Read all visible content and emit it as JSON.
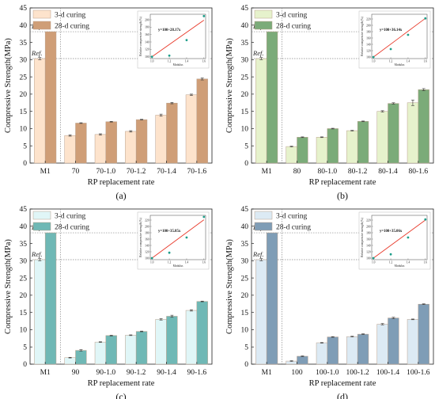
{
  "chart_data": [
    {
      "type": "bar",
      "panel_label": "(a)",
      "categories": [
        "M1",
        "70",
        "70-1.0",
        "70-1.2",
        "70-1.4",
        "70-1.6"
      ],
      "series": [
        {
          "name": "3-d curing",
          "values": [
            30.3,
            8.0,
            8.3,
            9.2,
            13.9,
            19.8
          ],
          "errors": [
            0.3,
            0.2,
            0.2,
            0.2,
            0.3,
            0.2
          ],
          "color": "#fde3cc"
        },
        {
          "name": "28-d curing",
          "values": [
            38.1,
            11.6,
            12.0,
            12.6,
            17.4,
            24.4
          ],
          "errors": [
            0.0,
            0.1,
            0.1,
            0.1,
            0.2,
            0.3
          ],
          "color": "#cf9e77"
        }
      ],
      "xlabel": "RP replacement rate",
      "ylabel": "Compressive Strength(MPa)",
      "ylim": [
        0,
        45
      ],
      "yticks": [
        0,
        5,
        10,
        15,
        20,
        25,
        30,
        35,
        40,
        45
      ],
      "ref_labels": [
        "Ref.",
        "Ref."
      ],
      "inset": {
        "equation": "y=100+28.17x",
        "xlabel": "Modulus",
        "ylabel": "Relative compressive strength (%)",
        "xticks": [
          "1.0",
          "1.2",
          "1.4",
          "1.6"
        ],
        "yticks": [
          "100",
          "120",
          "140",
          "160",
          "180",
          "200"
        ],
        "ylim": [
          95,
          215
        ],
        "points": [
          [
            1.0,
            100
          ],
          [
            1.2,
            103
          ],
          [
            1.4,
            145
          ],
          [
            1.6,
            210
          ]
        ],
        "fit": [
          [
            1.0,
            100
          ],
          [
            1.6,
            199
          ]
        ]
      }
    },
    {
      "type": "bar",
      "panel_label": "(b)",
      "categories": [
        "M1",
        "80",
        "80-1.0",
        "80-1.2",
        "80-1.4",
        "80-1.6"
      ],
      "series": [
        {
          "name": "3-d curing",
          "values": [
            30.3,
            4.8,
            7.5,
            9.4,
            15.0,
            17.5
          ],
          "errors": [
            0.3,
            0.1,
            0.1,
            0.1,
            0.2,
            0.8
          ],
          "color": "#e6f2cc"
        },
        {
          "name": "28-d curing",
          "values": [
            38.1,
            7.5,
            10.0,
            12.1,
            17.3,
            21.3
          ],
          "errors": [
            0.0,
            0.1,
            0.1,
            0.1,
            0.2,
            0.3
          ],
          "color": "#7bab79"
        }
      ],
      "xlabel": "RP replacement rate",
      "ylabel": "Compressive Strength(MPa)",
      "ylim": [
        0,
        45
      ],
      "yticks": [
        0,
        5,
        10,
        15,
        20,
        25,
        30,
        35,
        40,
        45
      ],
      "ref_labels": [
        "Ref.",
        "Ref."
      ],
      "inset": {
        "equation": "y=100+36.14x",
        "xlabel": "Modulus",
        "ylabel": "Relative compressive strength (%)",
        "xticks": [
          "1.0",
          "1.2",
          "1.4",
          "1.6"
        ],
        "yticks": [
          "100",
          "120",
          "140",
          "160",
          "180",
          "200",
          "220"
        ],
        "ylim": [
          95,
          235
        ],
        "points": [
          [
            1.0,
            100
          ],
          [
            1.2,
            125
          ],
          [
            1.4,
            170
          ],
          [
            1.6,
            222
          ]
        ],
        "fit": [
          [
            1.0,
            100
          ],
          [
            1.6,
            222
          ]
        ]
      }
    },
    {
      "type": "bar",
      "panel_label": "(c)",
      "categories": [
        "M1",
        "90",
        "90-1.0",
        "90-1.2",
        "90-1.4",
        "90-1.6"
      ],
      "series": [
        {
          "name": "3-d curing",
          "values": [
            30.3,
            1.9,
            6.4,
            8.4,
            13.0,
            15.6
          ],
          "errors": [
            0.3,
            0.1,
            0.1,
            0.1,
            0.2,
            0.2
          ],
          "color": "#e0f6f7"
        },
        {
          "name": "28-d curing",
          "values": [
            38.1,
            4.0,
            8.3,
            9.5,
            13.9,
            18.2
          ],
          "errors": [
            0.0,
            0.2,
            0.1,
            0.1,
            0.3,
            0.1
          ],
          "color": "#6fb8b5"
        }
      ],
      "xlabel": "RP replacement rate",
      "ylabel": "Compressive Strength(MPa)",
      "ylim": [
        0,
        45
      ],
      "yticks": [
        0,
        5,
        10,
        15,
        20,
        25,
        30,
        35,
        40,
        45
      ],
      "ref_labels": [
        "Ref.",
        "Ref."
      ],
      "inset": {
        "equation": "y=100+35.85x",
        "xlabel": "Modulus",
        "ylabel": "Relative compressive strength (%)",
        "xticks": [
          "1.0",
          "1.2",
          "1.4",
          "1.6"
        ],
        "yticks": [
          "100",
          "120",
          "140",
          "160",
          "180",
          "200",
          "220"
        ],
        "ylim": [
          95,
          235
        ],
        "points": [
          [
            1.0,
            100
          ],
          [
            1.2,
            117
          ],
          [
            1.4,
            165
          ],
          [
            1.6,
            230
          ]
        ],
        "fit": [
          [
            1.0,
            100
          ],
          [
            1.6,
            221
          ]
        ]
      }
    },
    {
      "type": "bar",
      "panel_label": "(d)",
      "categories": [
        "M1",
        "100",
        "100-1.0",
        "100-1.2",
        "100-1.4",
        "100-1.6"
      ],
      "series": [
        {
          "name": "3-d curing",
          "values": [
            30.3,
            0.9,
            6.2,
            8.0,
            11.6,
            13.0
          ],
          "errors": [
            0.3,
            0.1,
            0.1,
            0.1,
            0.2,
            0.1
          ],
          "color": "#dceaf4"
        },
        {
          "name": "28-d curing",
          "values": [
            38.1,
            2.3,
            7.9,
            8.7,
            13.4,
            17.4
          ],
          "errors": [
            0.0,
            0.1,
            0.1,
            0.1,
            0.2,
            0.1
          ],
          "color": "#7f9db6"
        }
      ],
      "xlabel": "RP replacement rate",
      "ylabel": "Compressive Strength(MPa)",
      "ylim": [
        0,
        45
      ],
      "yticks": [
        0,
        5,
        10,
        15,
        20,
        25,
        30,
        35,
        40,
        45
      ],
      "ref_labels": [
        "Ref.",
        "Ref."
      ],
      "inset": {
        "equation": "y=100+35.06x",
        "xlabel": "Modulus",
        "ylabel": "Relative compressive strength (%)",
        "xticks": [
          "1.0",
          "1.2",
          "1.4",
          "1.6"
        ],
        "yticks": [
          "100",
          "120",
          "140",
          "160",
          "180",
          "200",
          "220"
        ],
        "ylim": [
          95,
          235
        ],
        "points": [
          [
            1.0,
            100
          ],
          [
            1.2,
            112
          ],
          [
            1.4,
            165
          ],
          [
            1.6,
            222
          ]
        ],
        "fit": [
          [
            1.0,
            100
          ],
          [
            1.6,
            220
          ]
        ]
      }
    }
  ],
  "colors": {
    "fit_line": "#e8392a",
    "inset_point": "#1e9e8a",
    "bar_edge": "#8a6b55",
    "ref_line": "#888888"
  }
}
